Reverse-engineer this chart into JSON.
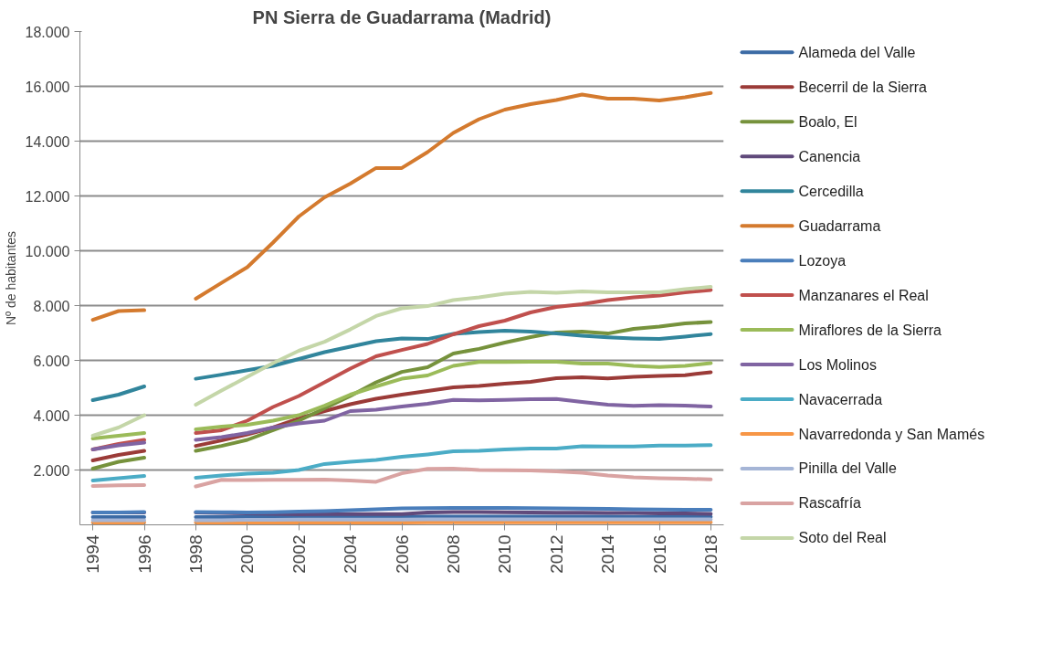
{
  "chart_data": {
    "type": "line",
    "title": "PN Sierra de Guadarrama (Madrid)",
    "ylabel": "Nº de habitantes",
    "x": [
      1994,
      1995,
      1996,
      1997,
      1998,
      1999,
      2000,
      2001,
      2002,
      2003,
      2004,
      2005,
      2006,
      2007,
      2008,
      2009,
      2010,
      2011,
      2012,
      2013,
      2014,
      2015,
      2016,
      2017,
      2018
    ],
    "xlim": [
      1993.5,
      2018.5
    ],
    "xticks": [
      1994,
      1996,
      1998,
      2000,
      2002,
      2004,
      2006,
      2008,
      2010,
      2012,
      2014,
      2016,
      2018
    ],
    "ylim": [
      0,
      18000
    ],
    "yticks": [
      {
        "value": 2000,
        "label": "2.000"
      },
      {
        "value": 4000,
        "label": "4.000"
      },
      {
        "value": 6000,
        "label": "6.000"
      },
      {
        "value": 8000,
        "label": "8.000"
      },
      {
        "value": 10000,
        "label": "10.000"
      },
      {
        "value": 12000,
        "label": "12.000"
      },
      {
        "value": 14000,
        "label": "14.000"
      },
      {
        "value": 16000,
        "label": "16.000"
      },
      {
        "value": 18000,
        "label": "18.000"
      }
    ],
    "grid": "y",
    "legend": "right",
    "marker": "none",
    "line_style": "solid",
    "series": [
      {
        "name": "Alameda del Valle",
        "color": "#3c6ba5",
        "values": [
          280,
          280,
          280,
          null,
          280,
          280,
          280,
          280,
          280,
          290,
          290,
          290,
          290,
          300,
          300,
          300,
          300,
          300,
          300,
          300,
          300,
          290,
          290,
          290,
          290
        ]
      },
      {
        "name": "Becerril de la Sierra",
        "color": "#9b3b38",
        "values": [
          2350,
          2550,
          2700,
          null,
          2880,
          3080,
          3300,
          3550,
          3880,
          4150,
          4400,
          4600,
          4750,
          4880,
          5020,
          5070,
          5150,
          5220,
          5350,
          5380,
          5340,
          5400,
          5430,
          5460,
          5570
        ]
      },
      {
        "name": "Boalo, El",
        "color": "#76923c",
        "values": [
          2050,
          2300,
          2450,
          null,
          2700,
          2880,
          3100,
          3450,
          3800,
          4250,
          4700,
          5200,
          5580,
          5750,
          6250,
          6420,
          6650,
          6850,
          7020,
          7050,
          6980,
          7150,
          7230,
          7350,
          7400
        ]
      },
      {
        "name": "Canencia",
        "color": "#604a7b",
        "values": [
          450,
          450,
          450,
          null,
          450,
          430,
          420,
          400,
          380,
          390,
          390,
          390,
          390,
          450,
          470,
          470,
          460,
          450,
          440,
          440,
          430,
          430,
          420,
          420,
          400
        ]
      },
      {
        "name": "Cercedilla",
        "color": "#31859c",
        "values": [
          4550,
          4750,
          5050,
          null,
          5330,
          5480,
          5640,
          5800,
          6050,
          6300,
          6500,
          6700,
          6800,
          6780,
          6970,
          7030,
          7080,
          7050,
          6980,
          6900,
          6840,
          6800,
          6780,
          6870,
          6960
        ]
      },
      {
        "name": "Guadarrama",
        "color": "#d47a2e",
        "values": [
          7480,
          7800,
          7830,
          null,
          8250,
          8830,
          9400,
          10300,
          11250,
          11950,
          12450,
          13020,
          13020,
          13600,
          14300,
          14800,
          15150,
          15350,
          15500,
          15700,
          15550,
          15550,
          15480,
          15600,
          15760
        ]
      },
      {
        "name": "Lozoya",
        "color": "#4a7ebb",
        "values": [
          450,
          450,
          470,
          null,
          470,
          460,
          450,
          460,
          480,
          500,
          530,
          570,
          600,
          610,
          620,
          620,
          620,
          610,
          600,
          590,
          580,
          570,
          560,
          550,
          550
        ]
      },
      {
        "name": "Manzanares el Real",
        "color": "#c0504d",
        "values": [
          2750,
          2950,
          3100,
          null,
          3350,
          3450,
          3800,
          4300,
          4700,
          5200,
          5700,
          6150,
          6380,
          6600,
          6950,
          7250,
          7450,
          7750,
          7950,
          8050,
          8200,
          8300,
          8370,
          8480,
          8570
        ]
      },
      {
        "name": "Miraflores de la Sierra",
        "color": "#9bbb59",
        "values": [
          3150,
          3250,
          3350,
          null,
          3480,
          3580,
          3650,
          3800,
          4000,
          4350,
          4750,
          5050,
          5330,
          5450,
          5800,
          5940,
          5940,
          5950,
          5950,
          5880,
          5880,
          5800,
          5760,
          5800,
          5900
        ]
      },
      {
        "name": "Los Molinos",
        "color": "#8064a2",
        "values": [
          2750,
          2900,
          3000,
          null,
          3100,
          3200,
          3350,
          3550,
          3700,
          3800,
          4150,
          4200,
          4320,
          4420,
          4560,
          4540,
          4560,
          4580,
          4590,
          4480,
          4380,
          4340,
          4370,
          4350,
          4320
        ]
      },
      {
        "name": "Navacerrada",
        "color": "#4bacc6",
        "values": [
          1620,
          1700,
          1780,
          null,
          1720,
          1800,
          1870,
          1900,
          2000,
          2220,
          2300,
          2370,
          2480,
          2570,
          2680,
          2700,
          2750,
          2780,
          2780,
          2870,
          2860,
          2860,
          2890,
          2890,
          2910
        ]
      },
      {
        "name": "Navarredonda y San Mamés",
        "color": "#f79646",
        "values": [
          80,
          80,
          80,
          null,
          80,
          80,
          80,
          80,
          80,
          80,
          80,
          80,
          80,
          90,
          90,
          90,
          90,
          90,
          90,
          90,
          90,
          90,
          90,
          90,
          90
        ]
      },
      {
        "name": "Pinilla del Valle",
        "color": "#a5b5d6",
        "values": [
          170,
          170,
          170,
          null,
          170,
          170,
          180,
          180,
          190,
          190,
          190,
          190,
          190,
          200,
          200,
          200,
          200,
          200,
          200,
          200,
          200,
          200,
          200,
          200,
          200
        ]
      },
      {
        "name": "Rascafría",
        "color": "#d9a3a2",
        "values": [
          1420,
          1440,
          1450,
          null,
          1400,
          1640,
          1630,
          1640,
          1640,
          1650,
          1620,
          1570,
          1880,
          2040,
          2050,
          2000,
          1990,
          1980,
          1950,
          1900,
          1800,
          1730,
          1700,
          1680,
          1660
        ]
      },
      {
        "name": "Soto del Real",
        "color": "#c4d6a8",
        "values": [
          3250,
          3550,
          4000,
          null,
          4380,
          4900,
          5400,
          5900,
          6350,
          6680,
          7130,
          7620,
          7900,
          7980,
          8200,
          8300,
          8430,
          8500,
          8470,
          8520,
          8480,
          8480,
          8480,
          8600,
          8680
        ]
      }
    ]
  }
}
